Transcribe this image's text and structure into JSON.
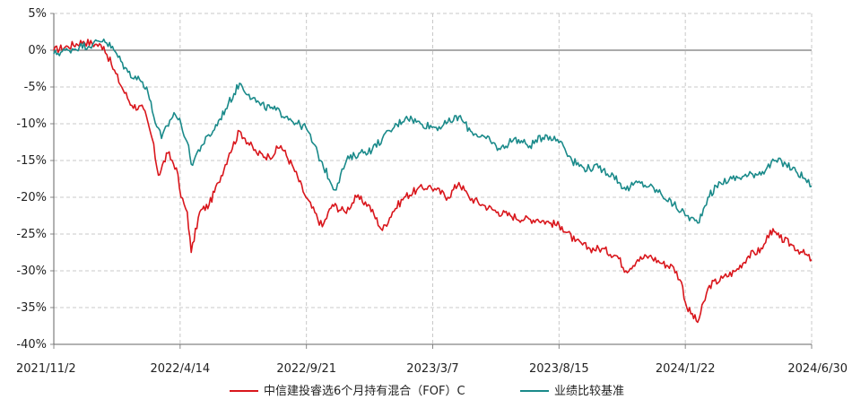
{
  "chart_data": {
    "type": "line",
    "title": "",
    "xlabel": "",
    "ylabel": "",
    "x_ticks": [
      "2021/11/2",
      "2022/4/14",
      "2022/9/21",
      "2023/3/7",
      "2023/8/15",
      "2024/1/22",
      "2024/6/30"
    ],
    "y_ticks": [
      "5%",
      "0%",
      "-5%",
      "-10%",
      "-15%",
      "-20%",
      "-25%",
      "-30%",
      "-35%",
      "-40%"
    ],
    "ylim": [
      -40,
      5
    ],
    "grid": true,
    "legend_position": "bottom",
    "series": [
      {
        "name": "中信建投睿选6个月持有混合（FOF）C",
        "color": "#d9161c",
        "points": [
          [
            "2021-11-02",
            0
          ],
          [
            "2021-11-20",
            0.5
          ],
          [
            "2021-12-10",
            1.2
          ],
          [
            "2021-12-25",
            0.8
          ],
          [
            "2022-01-05",
            0.5
          ],
          [
            "2022-01-15",
            -2
          ],
          [
            "2022-01-28",
            -5
          ],
          [
            "2022-02-10",
            -7.5
          ],
          [
            "2022-02-25",
            -8
          ],
          [
            "2022-03-08",
            -12
          ],
          [
            "2022-03-16",
            -17
          ],
          [
            "2022-03-28",
            -14
          ],
          [
            "2022-04-08",
            -16
          ],
          [
            "2022-04-14",
            -20
          ],
          [
            "2022-04-22",
            -22
          ],
          [
            "2022-04-27",
            -27.5
          ],
          [
            "2022-05-08",
            -22
          ],
          [
            "2022-05-20",
            -21
          ],
          [
            "2022-06-01",
            -18
          ],
          [
            "2022-06-15",
            -14
          ],
          [
            "2022-06-28",
            -11
          ],
          [
            "2022-07-05",
            -12
          ],
          [
            "2022-07-20",
            -14
          ],
          [
            "2022-08-05",
            -14.5
          ],
          [
            "2022-08-20",
            -13
          ],
          [
            "2022-09-05",
            -16
          ],
          [
            "2022-09-21",
            -20
          ],
          [
            "2022-10-12",
            -24
          ],
          [
            "2022-10-25",
            -21
          ],
          [
            "2022-11-10",
            -22
          ],
          [
            "2022-11-25",
            -20
          ],
          [
            "2022-12-10",
            -21
          ],
          [
            "2022-12-28",
            -24.5
          ],
          [
            "2023-01-10",
            -22
          ],
          [
            "2023-01-25",
            -20
          ],
          [
            "2023-02-10",
            -19
          ],
          [
            "2023-02-25",
            -18.5
          ],
          [
            "2023-03-07",
            -19
          ],
          [
            "2023-03-22",
            -20
          ],
          [
            "2023-04-05",
            -18
          ],
          [
            "2023-04-18",
            -20
          ],
          [
            "2023-05-05",
            -21
          ],
          [
            "2023-05-25",
            -22
          ],
          [
            "2023-06-10",
            -22.5
          ],
          [
            "2023-06-28",
            -23
          ],
          [
            "2023-07-15",
            -23
          ],
          [
            "2023-08-01",
            -23.5
          ],
          [
            "2023-08-15",
            -24
          ],
          [
            "2023-09-01",
            -26
          ],
          [
            "2023-09-20",
            -27
          ],
          [
            "2023-10-05",
            -27
          ],
          [
            "2023-10-25",
            -28
          ],
          [
            "2023-11-05",
            -30
          ],
          [
            "2023-11-20",
            -28.5
          ],
          [
            "2023-12-05",
            -28
          ],
          [
            "2023-12-22",
            -29
          ],
          [
            "2024-01-05",
            -29.5
          ],
          [
            "2024-01-15",
            -31.5
          ],
          [
            "2024-01-22",
            -35
          ],
          [
            "2024-02-05",
            -37
          ],
          [
            "2024-02-20",
            -32
          ],
          [
            "2024-03-08",
            -31
          ],
          [
            "2024-03-25",
            -30
          ],
          [
            "2024-04-10",
            -28
          ],
          [
            "2024-04-28",
            -27
          ],
          [
            "2024-05-08",
            -24.5
          ],
          [
            "2024-05-20",
            -25.5
          ],
          [
            "2024-06-05",
            -26.5
          ],
          [
            "2024-06-18",
            -27.5
          ],
          [
            "2024-06-30",
            -28.5
          ]
        ]
      },
      {
        "name": "业绩比较基准",
        "color": "#1a8a8a",
        "points": [
          [
            "2021-11-02",
            -0.5
          ],
          [
            "2021-11-20",
            0
          ],
          [
            "2021-12-05",
            0.5
          ],
          [
            "2021-12-22",
            0.8
          ],
          [
            "2022-01-05",
            1.5
          ],
          [
            "2022-01-18",
            0
          ],
          [
            "2022-02-05",
            -3
          ],
          [
            "2022-02-20",
            -4
          ],
          [
            "2022-03-01",
            -5
          ],
          [
            "2022-03-10",
            -9
          ],
          [
            "2022-03-20",
            -12
          ],
          [
            "2022-04-05",
            -8.5
          ],
          [
            "2022-04-14",
            -10
          ],
          [
            "2022-04-22",
            -12.5
          ],
          [
            "2022-04-27",
            -15.5
          ],
          [
            "2022-05-10",
            -13
          ],
          [
            "2022-05-25",
            -11
          ],
          [
            "2022-06-10",
            -8
          ],
          [
            "2022-06-28",
            -4.5
          ],
          [
            "2022-07-10",
            -6
          ],
          [
            "2022-07-25",
            -7.5
          ],
          [
            "2022-08-10",
            -8
          ],
          [
            "2022-08-28",
            -9
          ],
          [
            "2022-09-10",
            -10
          ],
          [
            "2022-09-21",
            -10.5
          ],
          [
            "2022-10-10",
            -15
          ],
          [
            "2022-10-28",
            -19
          ],
          [
            "2022-11-12",
            -15
          ],
          [
            "2022-11-28",
            -14
          ],
          [
            "2022-12-15",
            -13.5
          ],
          [
            "2022-12-28",
            -12
          ],
          [
            "2023-01-12",
            -10.5
          ],
          [
            "2023-01-28",
            -9
          ],
          [
            "2023-02-15",
            -10
          ],
          [
            "2023-03-07",
            -10.5
          ],
          [
            "2023-03-20",
            -10
          ],
          [
            "2023-04-05",
            -9
          ],
          [
            "2023-04-20",
            -11
          ],
          [
            "2023-05-10",
            -12
          ],
          [
            "2023-05-28",
            -13.5
          ],
          [
            "2023-06-15",
            -12
          ],
          [
            "2023-07-05",
            -13
          ],
          [
            "2023-07-25",
            -11.5
          ],
          [
            "2023-08-15",
            -12.5
          ],
          [
            "2023-08-28",
            -15
          ],
          [
            "2023-09-12",
            -16
          ],
          [
            "2023-10-01",
            -16
          ],
          [
            "2023-10-20",
            -17
          ],
          [
            "2023-11-05",
            -19
          ],
          [
            "2023-11-20",
            -18
          ],
          [
            "2023-12-05",
            -18.5
          ],
          [
            "2023-12-20",
            -19.5
          ],
          [
            "2024-01-05",
            -21
          ],
          [
            "2024-01-22",
            -22.5
          ],
          [
            "2024-02-05",
            -23.5
          ],
          [
            "2024-02-18",
            -20
          ],
          [
            "2024-03-05",
            -18
          ],
          [
            "2024-03-20",
            -17.5
          ],
          [
            "2024-04-10",
            -17
          ],
          [
            "2024-04-28",
            -16.5
          ],
          [
            "2024-05-15",
            -15
          ],
          [
            "2024-05-28",
            -15.5
          ],
          [
            "2024-06-10",
            -16.5
          ],
          [
            "2024-06-22",
            -17.5
          ],
          [
            "2024-06-30",
            -18.5
          ]
        ]
      }
    ]
  }
}
